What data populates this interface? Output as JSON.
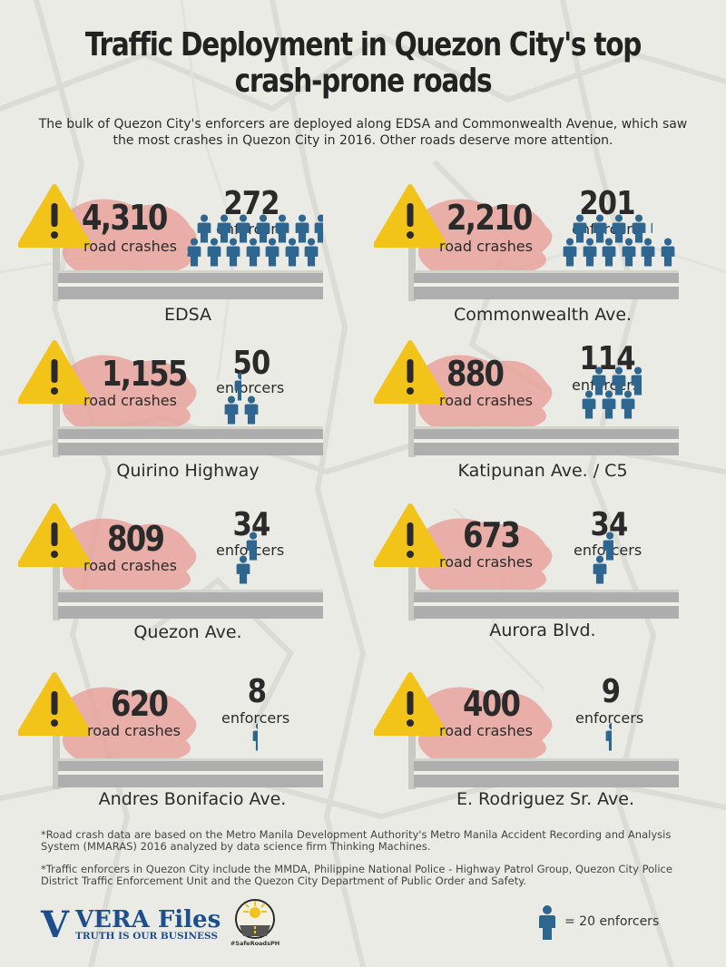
{
  "title": "Traffic Deployment in Quezon City's top crash-prone roads",
  "subtitle": "The bulk of Quezon City's enforcers are deployed along EDSA and Commonwealth Avenue, which saw the most crashes in Quezon City in 2016.  Other roads deserve more attention.",
  "crash_label": "road crashes",
  "enforcer_label": "enforcers",
  "icon_names": {
    "warning": "warning-triangle-icon",
    "person": "enforcer-person-icon"
  },
  "colors": {
    "warning": "#f2c41a",
    "splatter": "#e8a39b",
    "person": "#2f6690",
    "road": "#aeaeae",
    "background": "#ebebe6"
  },
  "roads": [
    {
      "name": "EDSA",
      "crashes": "4,310",
      "enforcers": "272",
      "icon_count": 13.6
    },
    {
      "name": "Commonwealth Ave.",
      "crashes": "2,210",
      "enforcers": "201",
      "icon_count": 10.05
    },
    {
      "name": "Quirino Highway",
      "crashes": "1,155",
      "enforcers": "50",
      "icon_count": 2.5
    },
    {
      "name": "Katipunan Ave. / C5",
      "crashes": "880",
      "enforcers": "114",
      "icon_count": 5.7
    },
    {
      "name": "Quezon Ave.",
      "crashes": "809",
      "enforcers": "34",
      "icon_count": 1.7
    },
    {
      "name": "Aurora Blvd.",
      "crashes": "673",
      "enforcers": "34",
      "icon_count": 1.7
    },
    {
      "name": "Andres Bonifacio Ave.",
      "crashes": "620",
      "enforcers": "8",
      "icon_count": 0.4
    },
    {
      "name": "E. Rodriguez Sr. Ave.",
      "crashes": "400",
      "enforcers": "9",
      "icon_count": 0.45
    }
  ],
  "notes": [
    "*Road crash data are based on the Metro Manila Development Authority's Metro Manila Accident Recording and Analysis System (MMARAS) 2016 analyzed by data science firm Thinking Machines.",
    "*Traffic enforcers in Quezon City include the MMDA, Philippine National Police - Highway Patrol Group, Quezon City Police District Traffic Enforcement Unit and the Quezon City Department of Public Order and Safety."
  ],
  "logos": {
    "vera_letter": "V",
    "vera_name": "VERA Files",
    "vera_tagline": "TRUTH IS OUR BUSINESS",
    "safe_roads": "#SafeRoadsPH"
  },
  "legend": {
    "text": "= 20 enforcers"
  }
}
